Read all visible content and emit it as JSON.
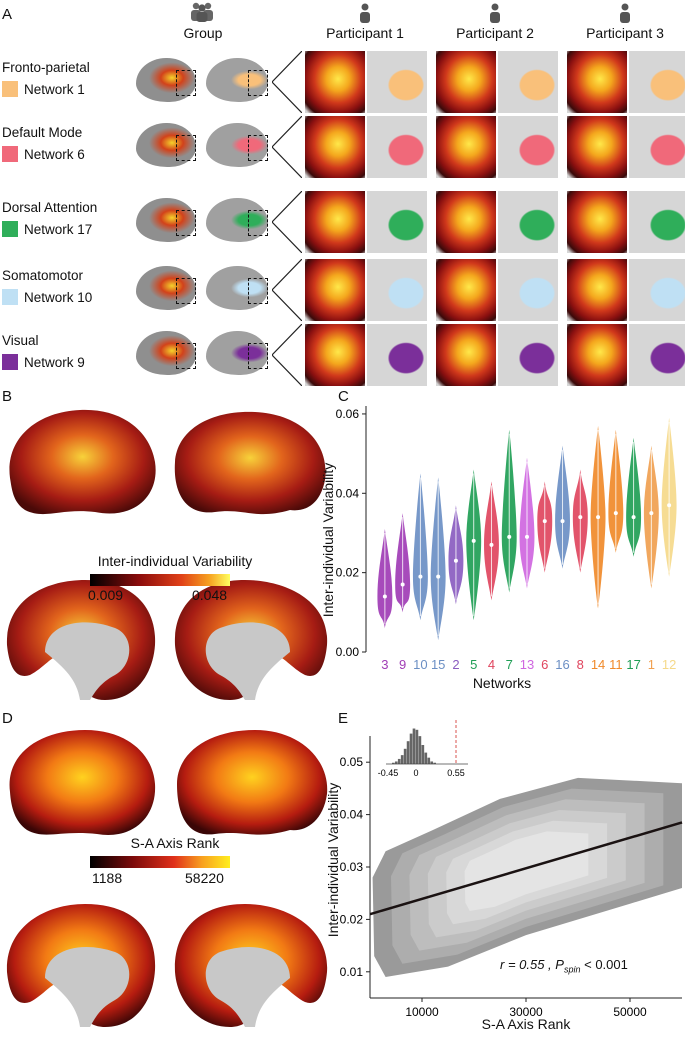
{
  "panels": {
    "a": "A",
    "b": "B",
    "c": "C",
    "d": "D",
    "e": "E"
  },
  "panel_a": {
    "group_label": "Group",
    "participants": [
      "Participant 1",
      "Participant 2",
      "Participant 3"
    ],
    "networks": [
      {
        "title": "Fronto-parietal",
        "name": "Network 1",
        "color": "#f9c07a"
      },
      {
        "title": "Default Mode",
        "name": "Network 6",
        "color": "#f0697a"
      },
      {
        "title": "Dorsal Attention",
        "name": "Network 17",
        "color": "#2fae5a"
      },
      {
        "title": "Somatomotor",
        "name": "Network 10",
        "color": "#bfe0f4"
      },
      {
        "title": "Visual",
        "name": "Network 9",
        "color": "#7b2f9a"
      }
    ]
  },
  "panel_b": {
    "colorbar_title": "Inter-individual Variability",
    "min": "0.009",
    "max": "0.048"
  },
  "panel_d": {
    "colorbar_title": "S-A Axis Rank",
    "min": "1188",
    "max": "58220"
  },
  "chart_data": [
    {
      "type": "violin",
      "panel": "C",
      "xlabel": "Networks",
      "ylabel": "Inter-individual Variability",
      "ylim": [
        0,
        0.062
      ],
      "yticks": [
        "0.00",
        "0.02",
        "0.04",
        "0.06"
      ],
      "categories": [
        "3",
        "9",
        "10",
        "15",
        "2",
        "5",
        "4",
        "7",
        "13",
        "6",
        "16",
        "8",
        "14",
        "11",
        "17",
        "1",
        "12"
      ],
      "colors": [
        "#a03cb5",
        "#a03cb5",
        "#6b8fc4",
        "#6b8fc4",
        "#8a5cc0",
        "#1f9e55",
        "#e0455e",
        "#1f9e55",
        "#cf66e0",
        "#e0455e",
        "#6b8fc4",
        "#e0455e",
        "#f08a2a",
        "#f08a2a",
        "#1f9e55",
        "#f0a050",
        "#f5d98a"
      ],
      "medians": [
        0.014,
        0.017,
        0.019,
        0.019,
        0.023,
        0.028,
        0.027,
        0.029,
        0.029,
        0.033,
        0.033,
        0.034,
        0.034,
        0.035,
        0.034,
        0.035,
        0.037
      ],
      "mins": [
        0.006,
        0.01,
        0.008,
        0.003,
        0.012,
        0.008,
        0.013,
        0.015,
        0.016,
        0.02,
        0.021,
        0.02,
        0.011,
        0.025,
        0.024,
        0.016,
        0.019
      ],
      "maxs": [
        0.031,
        0.035,
        0.045,
        0.044,
        0.037,
        0.046,
        0.043,
        0.056,
        0.049,
        0.043,
        0.052,
        0.046,
        0.057,
        0.056,
        0.054,
        0.052,
        0.059
      ]
    },
    {
      "type": "density_scatter",
      "panel": "E",
      "xlabel": "S-A Axis Rank",
      "ylabel": "Inter-individual Variability",
      "xlim": [
        0,
        60000
      ],
      "ylim": [
        0.005,
        0.055
      ],
      "xticks": [
        "10000",
        "30000",
        "50000"
      ],
      "yticks": [
        "0.01",
        "0.02",
        "0.03",
        "0.04",
        "0.05"
      ],
      "fit_line": {
        "x": [
          0,
          60000
        ],
        "y": [
          0.021,
          0.0385
        ]
      },
      "annotation_r": "r = 0.55 ,",
      "annotation_p": "< 0.001",
      "p_label": "P",
      "p_sub": "spin",
      "inset": {
        "type": "histogram",
        "xticks": [
          "-0.45",
          "0",
          "0.55"
        ],
        "observed": 0.55
      }
    }
  ]
}
